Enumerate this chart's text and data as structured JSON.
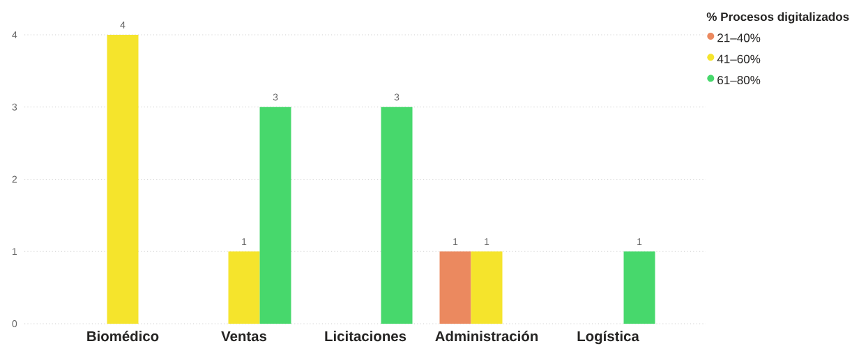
{
  "chart_data": {
    "type": "bar",
    "categories": [
      "Biomédico",
      "Ventas",
      "Licitaciones",
      "Administración",
      "Logística"
    ],
    "legend_title": "% Procesos digitalizados",
    "series": [
      {
        "name": "21–40%",
        "color": "#eb895f",
        "values": [
          null,
          null,
          null,
          1,
          null
        ]
      },
      {
        "name": "41–60%",
        "color": "#f5e42c",
        "values": [
          4,
          1,
          null,
          1,
          null
        ]
      },
      {
        "name": "61–80%",
        "color": "#47d86c",
        "values": [
          null,
          3,
          3,
          null,
          1
        ]
      }
    ],
    "ylim": [
      0,
      4
    ],
    "yticks": [
      0,
      1,
      2,
      3,
      4
    ],
    "grid": "y",
    "data_labels": true,
    "legend": "top right"
  }
}
